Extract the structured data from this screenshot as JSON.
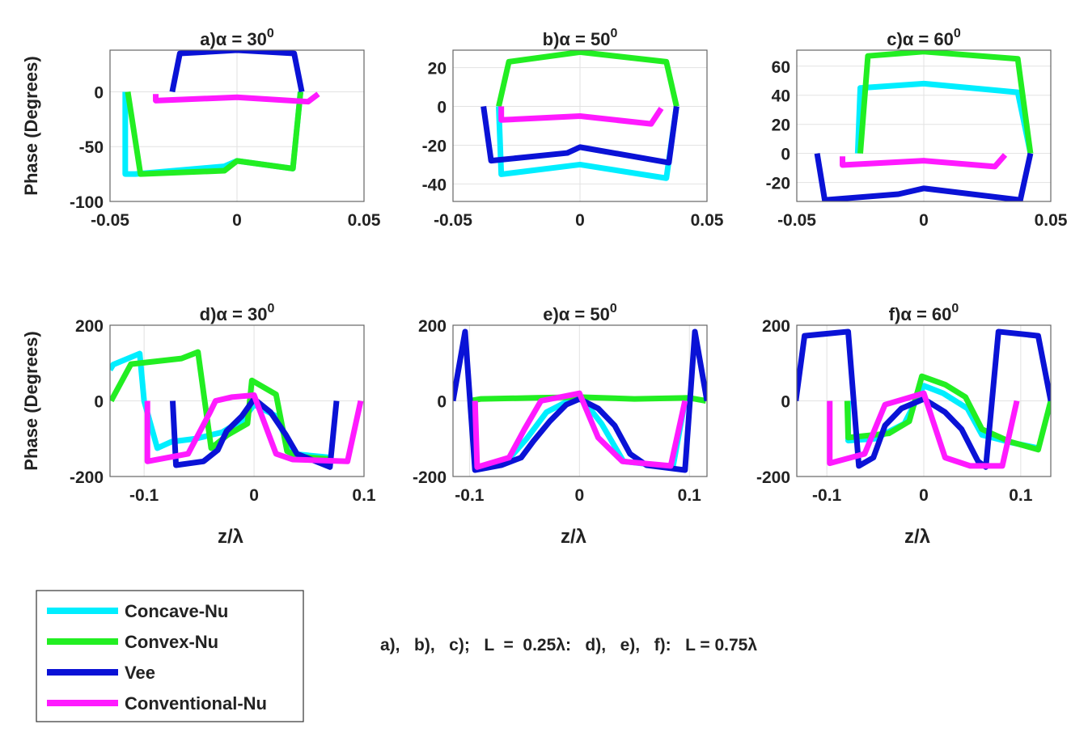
{
  "colors": {
    "Concave-Nu": "#00eeff",
    "Convex-Nu": "#22ee22",
    "Vee": "#0a12d6",
    "Conventional-Nu": "#ff1aff"
  },
  "legend": {
    "placement": "bottom-left",
    "entries": [
      "Concave-Nu",
      "Convex-Nu",
      "Vee",
      "Conventional-Nu"
    ]
  },
  "note": "a),   b),   c);   L  =  0.25λ:   d),   e),   f):   L = 0.75λ",
  "chart_data": [
    {
      "type": "line",
      "title": "a)α = 30",
      "title_sup": "0",
      "ylabel": "Phase (Degrees)",
      "xlabel": "",
      "xlim": [
        -0.05,
        0.05
      ],
      "ylim": [
        -100,
        38
      ],
      "xticks": [
        -0.05,
        0,
        0.05
      ],
      "yticks": [
        0,
        -50,
        -100
      ],
      "grid": true,
      "series": [
        {
          "name": "Concave-Nu",
          "points": [
            [
              -0.044,
              0
            ],
            [
              -0.044,
              -75
            ],
            [
              -0.04,
              -75
            ],
            [
              -0.005,
              -68
            ],
            [
              0,
              -63
            ],
            [
              0.022,
              -70
            ],
            [
              0.025,
              0
            ]
          ]
        },
        {
          "name": "Convex-Nu",
          "points": [
            [
              -0.043,
              0
            ],
            [
              -0.038,
              -75
            ],
            [
              -0.005,
              -72
            ],
            [
              0,
              -63
            ],
            [
              0.022,
              -70
            ],
            [
              0.025,
              0
            ]
          ]
        },
        {
          "name": "Vee",
          "points": [
            [
              -0.0255,
              0
            ],
            [
              -0.0225,
              35
            ],
            [
              0,
              38
            ],
            [
              0.0225,
              35
            ],
            [
              0.0255,
              0
            ]
          ]
        },
        {
          "name": "Conventional-Nu",
          "points": [
            [
              -0.032,
              -2
            ],
            [
              -0.032,
              -8
            ],
            [
              0,
              -5
            ],
            [
              0.028,
              -9
            ],
            [
              0.032,
              -2
            ]
          ]
        }
      ]
    },
    {
      "type": "line",
      "title": "b)α = 50",
      "title_sup": "0",
      "ylabel": "",
      "xlabel": "",
      "xlim": [
        -0.05,
        0.05
      ],
      "ylim": [
        -49,
        29
      ],
      "xticks": [
        -0.05,
        0,
        0.05
      ],
      "yticks": [
        20,
        0,
        -20,
        -40
      ],
      "grid": true,
      "series": [
        {
          "name": "Concave-Nu",
          "points": [
            [
              -0.032,
              0
            ],
            [
              -0.031,
              -35
            ],
            [
              0,
              -30
            ],
            [
              0.034,
              -37
            ],
            [
              0.038,
              0
            ]
          ]
        },
        {
          "name": "Convex-Nu",
          "points": [
            [
              -0.032,
              0
            ],
            [
              -0.028,
              23
            ],
            [
              0,
              28
            ],
            [
              0.034,
              23
            ],
            [
              0.038,
              0
            ]
          ]
        },
        {
          "name": "Vee",
          "points": [
            [
              -0.038,
              0
            ],
            [
              -0.035,
              -28
            ],
            [
              -0.005,
              -24
            ],
            [
              0,
              -21
            ],
            [
              0.035,
              -29
            ],
            [
              0.038,
              0
            ]
          ]
        },
        {
          "name": "Conventional-Nu",
          "points": [
            [
              -0.031,
              0
            ],
            [
              -0.031,
              -7
            ],
            [
              0,
              -5
            ],
            [
              0.028,
              -9
            ],
            [
              0.032,
              -1
            ]
          ]
        }
      ]
    },
    {
      "type": "line",
      "title": "c)α = 60",
      "title_sup": "0",
      "ylabel": "",
      "xlabel": "",
      "xlim": [
        -0.05,
        0.05
      ],
      "ylim": [
        -33,
        71
      ],
      "xticks": [
        -0.05,
        0,
        0.05
      ],
      "yticks": [
        60,
        40,
        20,
        0,
        -20
      ],
      "grid": true,
      "series": [
        {
          "name": "Concave-Nu",
          "points": [
            [
              -0.026,
              0
            ],
            [
              -0.025,
              45
            ],
            [
              0,
              48
            ],
            [
              0.037,
              42
            ],
            [
              0.042,
              0
            ]
          ]
        },
        {
          "name": "Convex-Nu",
          "points": [
            [
              -0.025,
              0
            ],
            [
              -0.022,
              67
            ],
            [
              0,
              70
            ],
            [
              0.037,
              65
            ],
            [
              0.042,
              0
            ]
          ]
        },
        {
          "name": "Vee",
          "points": [
            [
              -0.042,
              0
            ],
            [
              -0.039,
              -32
            ],
            [
              -0.01,
              -28
            ],
            [
              0,
              -24
            ],
            [
              0.038,
              -32
            ],
            [
              0.042,
              0
            ]
          ]
        },
        {
          "name": "Conventional-Nu",
          "points": [
            [
              -0.032,
              -2
            ],
            [
              -0.032,
              -8
            ],
            [
              0,
              -5
            ],
            [
              0.028,
              -9
            ],
            [
              0.032,
              -1
            ]
          ]
        }
      ]
    },
    {
      "type": "line",
      "title": "d)α = 30",
      "title_sup": "0",
      "ylabel": "Phase (Degrees)",
      "xlabel": "z/λ",
      "xlim": [
        -0.131,
        0.1
      ],
      "ylim": [
        -200,
        200
      ],
      "xticks": [
        -0.1,
        0,
        0.1
      ],
      "yticks": [
        200,
        0,
        -200
      ],
      "grid": true,
      "series": [
        {
          "name": "Concave-Nu",
          "points": [
            [
              -0.131,
              82
            ],
            [
              -0.128,
              96
            ],
            [
              -0.104,
              125
            ],
            [
              -0.1,
              0
            ],
            [
              -0.088,
              -125
            ],
            [
              -0.075,
              -108
            ],
            [
              -0.053,
              -100
            ],
            [
              -0.029,
              -83
            ],
            [
              -0.01,
              -50
            ],
            [
              0,
              -10
            ],
            [
              0.02,
              -40
            ],
            [
              0.035,
              -140
            ],
            [
              0.07,
              -150
            ]
          ]
        },
        {
          "name": "Convex-Nu",
          "points": [
            [
              -0.13,
              0
            ],
            [
              -0.112,
              97
            ],
            [
              -0.066,
              112
            ],
            [
              -0.051,
              129
            ],
            [
              -0.039,
              -125
            ],
            [
              -0.024,
              -90
            ],
            [
              -0.006,
              -60
            ],
            [
              -0.002,
              54
            ],
            [
              0.02,
              17
            ],
            [
              0.03,
              -133
            ],
            [
              0.04,
              -147
            ],
            [
              0.069,
              -154
            ]
          ]
        },
        {
          "name": "Vee",
          "points": [
            [
              -0.074,
              0
            ],
            [
              -0.071,
              -170
            ],
            [
              -0.046,
              -160
            ],
            [
              -0.033,
              -130
            ],
            [
              -0.025,
              -80
            ],
            [
              -0.011,
              -40
            ],
            [
              0,
              5
            ],
            [
              0.015,
              -30
            ],
            [
              0.029,
              -90
            ],
            [
              0.039,
              -140
            ],
            [
              0.069,
              -175
            ],
            [
              0.075,
              0
            ]
          ]
        },
        {
          "name": "Conventional-Nu",
          "points": [
            [
              -0.097,
              0
            ],
            [
              -0.097,
              -160
            ],
            [
              -0.06,
              -140
            ],
            [
              -0.04,
              -30
            ],
            [
              -0.035,
              0
            ],
            [
              -0.02,
              10
            ],
            [
              0,
              15
            ],
            [
              0.02,
              -140
            ],
            [
              0.035,
              -155
            ],
            [
              0.085,
              -160
            ],
            [
              0.097,
              0
            ]
          ]
        }
      ]
    },
    {
      "type": "line",
      "title": "e)α = 50",
      "title_sup": "0",
      "ylabel": "",
      "xlabel": "z/λ",
      "xlim": [
        -0.115,
        0.116
      ],
      "ylim": [
        -200,
        200
      ],
      "xticks": [
        -0.1,
        0,
        0.1
      ],
      "yticks": [
        200,
        0,
        -200
      ],
      "grid": true,
      "series": [
        {
          "name": "Concave-Nu",
          "points": [
            [
              -0.095,
              0
            ],
            [
              -0.094,
              -180
            ],
            [
              -0.066,
              -160
            ],
            [
              -0.048,
              -100
            ],
            [
              -0.03,
              -30
            ],
            [
              0,
              15
            ],
            [
              0.02,
              -60
            ],
            [
              0.04,
              -160
            ],
            [
              0.085,
              -175
            ],
            [
              0.096,
              0
            ]
          ]
        },
        {
          "name": "Convex-Nu",
          "points": [
            [
              -0.1,
              0
            ],
            [
              -0.09,
              5
            ],
            [
              -0.04,
              8
            ],
            [
              0,
              10
            ],
            [
              0.05,
              5
            ],
            [
              0.1,
              8
            ],
            [
              0.115,
              0
            ]
          ]
        },
        {
          "name": "Vee",
          "points": [
            [
              -0.115,
              0
            ],
            [
              -0.104,
              183
            ],
            [
              -0.095,
              -183
            ],
            [
              -0.071,
              -170
            ],
            [
              -0.053,
              -150
            ],
            [
              -0.042,
              -107
            ],
            [
              -0.027,
              -54
            ],
            [
              -0.012,
              -10
            ],
            [
              0,
              5
            ],
            [
              0.017,
              -20
            ],
            [
              0.032,
              -65
            ],
            [
              0.046,
              -140
            ],
            [
              0.061,
              -170
            ],
            [
              0.096,
              -183
            ],
            [
              0.105,
              183
            ],
            [
              0.116,
              0
            ]
          ]
        },
        {
          "name": "Conventional-Nu",
          "points": [
            [
              -0.095,
              0
            ],
            [
              -0.093,
              -175
            ],
            [
              -0.064,
              -150
            ],
            [
              -0.05,
              -75
            ],
            [
              -0.035,
              0
            ],
            [
              0,
              20
            ],
            [
              0.017,
              -97
            ],
            [
              0.039,
              -160
            ],
            [
              0.083,
              -172
            ],
            [
              0.096,
              0
            ]
          ]
        }
      ]
    },
    {
      "type": "line",
      "title": "f)α = 60",
      "title_sup": "0",
      "ylabel": "",
      "xlabel": "z/λ",
      "xlim": [
        -0.131,
        0.131
      ],
      "ylim": [
        -200,
        200
      ],
      "xticks": [
        -0.1,
        0,
        0.1
      ],
      "yticks": [
        200,
        0,
        -200
      ],
      "grid": true,
      "series": [
        {
          "name": "Concave-Nu",
          "points": [
            [
              -0.078,
              0
            ],
            [
              -0.078,
              -105
            ],
            [
              -0.05,
              -100
            ],
            [
              -0.02,
              -60
            ],
            [
              0,
              40
            ],
            [
              0.02,
              20
            ],
            [
              0.045,
              -20
            ],
            [
              0.06,
              -90
            ],
            [
              0.09,
              -110
            ],
            [
              0.118,
              -125
            ]
          ]
        },
        {
          "name": "Convex-Nu",
          "points": [
            [
              -0.079,
              0
            ],
            [
              -0.078,
              -97
            ],
            [
              -0.036,
              -86
            ],
            [
              -0.015,
              -54
            ],
            [
              -0.002,
              65
            ],
            [
              0.022,
              43
            ],
            [
              0.043,
              10
            ],
            [
              0.06,
              -75
            ],
            [
              0.089,
              -108
            ],
            [
              0.118,
              -129
            ],
            [
              0.131,
              0
            ]
          ]
        },
        {
          "name": "Vee",
          "points": [
            [
              -0.132,
              0
            ],
            [
              -0.123,
              172
            ],
            [
              -0.078,
              183
            ],
            [
              -0.067,
              -172
            ],
            [
              -0.052,
              -150
            ],
            [
              -0.04,
              -65
            ],
            [
              -0.023,
              -20
            ],
            [
              0,
              5
            ],
            [
              0.022,
              -30
            ],
            [
              0.039,
              -75
            ],
            [
              0.056,
              -160
            ],
            [
              0.064,
              -175
            ],
            [
              0.077,
              183
            ],
            [
              0.118,
              172
            ],
            [
              0.131,
              0
            ]
          ]
        },
        {
          "name": "Conventional-Nu",
          "points": [
            [
              -0.097,
              0
            ],
            [
              -0.097,
              -165
            ],
            [
              -0.061,
              -140
            ],
            [
              -0.04,
              -10
            ],
            [
              0,
              20
            ],
            [
              0.022,
              -150
            ],
            [
              0.048,
              -172
            ],
            [
              0.081,
              -172
            ],
            [
              0.096,
              0
            ]
          ]
        }
      ]
    }
  ]
}
